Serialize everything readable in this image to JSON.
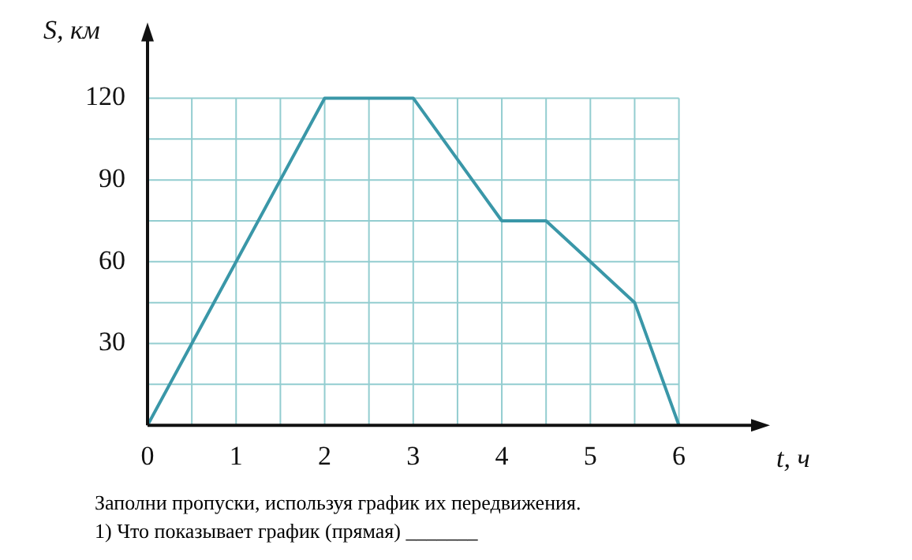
{
  "chart_data": {
    "type": "line",
    "xlabel": "t, ч",
    "ylabel": "S, км",
    "x": [
      0,
      2,
      3,
      4,
      4.5,
      5.5,
      6
    ],
    "series": [
      {
        "color": "#3a97a8",
        "values": [
          0,
          120,
          120,
          75,
          75,
          45,
          0
        ]
      }
    ],
    "xlim": [
      0,
      6.85
    ],
    "ylim": [
      0,
      142
    ],
    "xticks": [
      0,
      {
        "value": 0.5,
        "label": null
      },
      1,
      {
        "value": 1.5,
        "label": null
      },
      2,
      {
        "value": 2.5,
        "label": null
      },
      3,
      {
        "value": 3.5,
        "label": null
      },
      4,
      {
        "value": 4.5,
        "label": null
      },
      5,
      {
        "value": 5.5,
        "label": null
      },
      6
    ],
    "yticks": [
      {
        "value": 0,
        "label": null
      },
      {
        "value": 15,
        "label": null
      },
      30,
      {
        "value": 45,
        "label": null
      },
      60,
      {
        "value": 75,
        "label": null
      },
      90,
      {
        "value": 105,
        "label": null
      },
      120
    ],
    "grid": true,
    "legend": false,
    "marker": "none",
    "line_style": "solid",
    "annotations": [
      "Заполни пропуски, используя график их передвижения.",
      "1) Что показывает график (прямая) _______"
    ]
  }
}
